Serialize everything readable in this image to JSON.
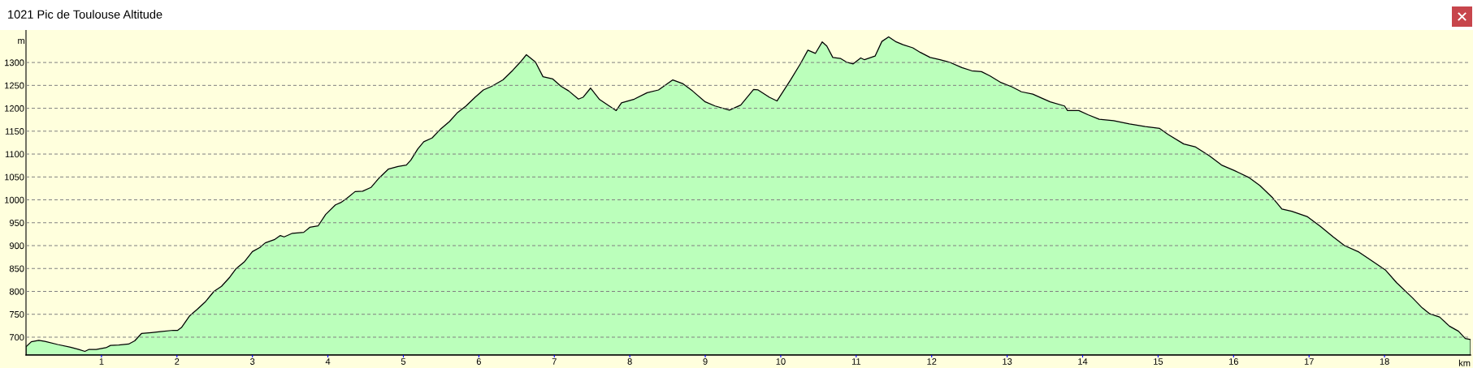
{
  "chart_data": {
    "type": "area",
    "title": "1021 Pic de Toulouse Altitude",
    "xlabel": "km",
    "ylabel": "m",
    "x": [
      0,
      0.07,
      0.17,
      0.25,
      0.42,
      0.59,
      0.7,
      0.78,
      0.83,
      0.93,
      1.06,
      1.12,
      1.23,
      1.36,
      1.44,
      1.53,
      1.66,
      1.78,
      1.95,
      2.01,
      2.06,
      2.17,
      2.27,
      2.38,
      2.49,
      2.59,
      2.7,
      2.78,
      2.89,
      3.0,
      3.1,
      3.17,
      3.29,
      3.37,
      3.42,
      3.53,
      3.68,
      3.76,
      3.87,
      3.97,
      4.1,
      4.17,
      4.25,
      4.36,
      4.46,
      4.57,
      4.68,
      4.8,
      4.93,
      5.04,
      5.1,
      5.19,
      5.27,
      5.38,
      5.49,
      5.61,
      5.72,
      5.83,
      5.95,
      6.06,
      6.17,
      6.32,
      6.45,
      6.55,
      6.63,
      6.75,
      6.85,
      6.98,
      7.09,
      7.19,
      7.32,
      7.38,
      7.48,
      7.6,
      7.72,
      7.82,
      7.89,
      8.06,
      8.23,
      8.38,
      8.57,
      8.7,
      8.83,
      9.0,
      9.13,
      9.32,
      9.47,
      9.64,
      9.7,
      9.85,
      9.95,
      10.13,
      10.26,
      10.36,
      10.46,
      10.55,
      10.61,
      10.69,
      10.79,
      10.87,
      10.96,
      11.06,
      11.11,
      11.25,
      11.34,
      11.43,
      11.53,
      11.62,
      11.75,
      11.85,
      11.98,
      12.11,
      12.23,
      12.4,
      12.53,
      12.66,
      12.77,
      12.92,
      13.06,
      13.19,
      13.34,
      13.46,
      13.57,
      13.76,
      13.8,
      13.95,
      14.07,
      14.22,
      14.41,
      14.62,
      14.83,
      15.02,
      15.13,
      15.34,
      15.49,
      15.68,
      15.84,
      16.01,
      16.2,
      16.35,
      16.52,
      16.64,
      16.77,
      16.98,
      17.15,
      17.32,
      17.47,
      17.66,
      17.82,
      18.01,
      18.16,
      18.37,
      18.5,
      18.6,
      18.73,
      18.86,
      18.98,
      19.07,
      19.14
    ],
    "values": [
      679,
      690,
      693,
      691,
      684,
      678,
      673,
      669,
      673,
      673,
      677,
      682,
      683,
      685,
      692,
      708,
      710,
      712,
      715,
      715,
      721,
      747,
      761,
      778,
      800,
      811,
      831,
      849,
      864,
      887,
      896,
      906,
      913,
      922,
      919,
      927,
      929,
      940,
      943,
      968,
      989,
      994,
      1003,
      1018,
      1019,
      1027,
      1048,
      1067,
      1073,
      1076,
      1087,
      1111,
      1127,
      1135,
      1154,
      1171,
      1191,
      1205,
      1224,
      1240,
      1248,
      1262,
      1283,
      1301,
      1317,
      1301,
      1269,
      1264,
      1248,
      1238,
      1220,
      1224,
      1244,
      1219,
      1206,
      1195,
      1212,
      1220,
      1234,
      1240,
      1262,
      1254,
      1238,
      1214,
      1205,
      1196,
      1207,
      1241,
      1240,
      1224,
      1216,
      1262,
      1297,
      1327,
      1320,
      1345,
      1336,
      1311,
      1309,
      1301,
      1297,
      1310,
      1306,
      1314,
      1346,
      1356,
      1345,
      1339,
      1332,
      1322,
      1311,
      1306,
      1301,
      1289,
      1282,
      1280,
      1271,
      1256,
      1247,
      1236,
      1231,
      1222,
      1214,
      1205,
      1195,
      1195,
      1186,
      1176,
      1173,
      1166,
      1160,
      1156,
      1143,
      1122,
      1116,
      1096,
      1076,
      1064,
      1049,
      1031,
      1004,
      980,
      975,
      963,
      942,
      919,
      900,
      886,
      868,
      847,
      819,
      786,
      764,
      751,
      744,
      724,
      713,
      697,
      695
    ],
    "color": "#bbffbb",
    "xlim": [
      0,
      19.14
    ],
    "ylim": [
      661,
      1371
    ],
    "xticks": [
      1,
      2,
      3,
      4,
      5,
      6,
      7,
      8,
      9,
      10,
      11,
      12,
      13,
      14,
      15,
      16,
      17,
      18
    ],
    "yticks": [
      700,
      750,
      800,
      850,
      900,
      950,
      1000,
      1050,
      1100,
      1150,
      1200,
      1250,
      1300
    ],
    "grid": "y"
  }
}
